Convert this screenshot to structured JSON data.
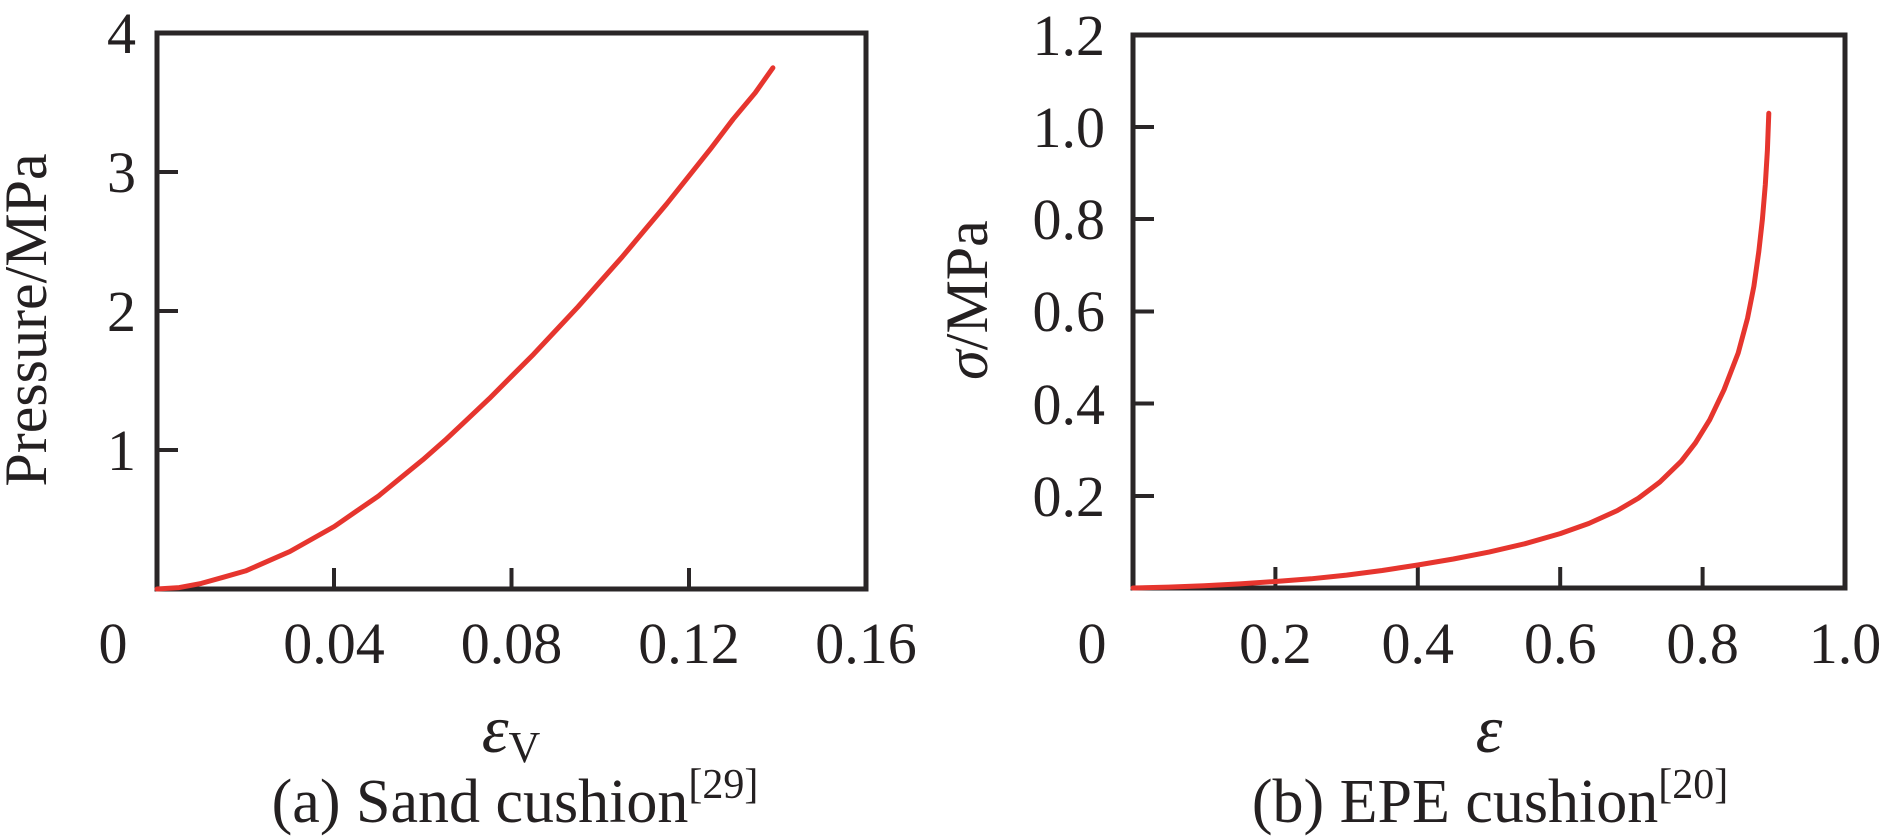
{
  "figure": {
    "background": "#ffffff",
    "text_color": "#242021",
    "axis_color": "#2a2627",
    "curve_color": "#e6352e"
  },
  "chart_data": [
    {
      "id": "a",
      "type": "line",
      "caption": "(a) Sand cushion",
      "caption_ref": "[29]",
      "xlabel": "ε",
      "xlabel_sub": "V",
      "ylabel": "Pressure/MPa",
      "xlim": [
        0,
        0.16
      ],
      "ylim": [
        0,
        4
      ],
      "grid": false,
      "legend": null,
      "x_tick_values": [
        0.04,
        0.08,
        0.12
      ],
      "x_tick_labels": [
        "0",
        "0.04",
        "0.08",
        "0.12",
        "0.16"
      ],
      "y_tick_values": [
        1,
        2,
        3
      ],
      "y_tick_labels": [
        "4",
        "3",
        "2",
        "1"
      ],
      "series": [
        {
          "name": "sand-cushion-stress-strain",
          "color": "#e6352e",
          "x": [
            0,
            0.005,
            0.01,
            0.015,
            0.02,
            0.025,
            0.03,
            0.035,
            0.04,
            0.045,
            0.05,
            0.055,
            0.06,
            0.065,
            0.07,
            0.075,
            0.08,
            0.085,
            0.09,
            0.095,
            0.1,
            0.105,
            0.11,
            0.115,
            0.12,
            0.125,
            0.13,
            0.135,
            0.139
          ],
          "y": [
            0,
            0.01,
            0.04,
            0.085,
            0.13,
            0.2,
            0.27,
            0.36,
            0.45,
            0.56,
            0.67,
            0.8,
            0.93,
            1.07,
            1.22,
            1.37,
            1.53,
            1.69,
            1.86,
            2.03,
            2.21,
            2.39,
            2.58,
            2.77,
            2.97,
            3.17,
            3.38,
            3.57,
            3.75
          ]
        }
      ]
    },
    {
      "id": "b",
      "type": "line",
      "caption": "(b) EPE cushion",
      "caption_ref": "[20]",
      "xlabel": "ε",
      "xlabel_sub": "",
      "ylabel_main": "σ",
      "ylabel_rest": "/MPa",
      "xlim": [
        0,
        1.0
      ],
      "ylim": [
        0,
        1.2
      ],
      "grid": false,
      "legend": null,
      "x_tick_values": [
        0.2,
        0.4,
        0.6,
        0.8
      ],
      "x_tick_labels": [
        "0",
        "0.2",
        "0.4",
        "0.6",
        "0.8",
        "1.0"
      ],
      "y_tick_values": [
        0.2,
        0.4,
        0.6,
        0.8,
        1.0
      ],
      "y_tick_labels": [
        "1.2",
        "1.0",
        "0.8",
        "0.6",
        "0.4",
        "0.2"
      ],
      "series": [
        {
          "name": "epe-cushion-stress-strain",
          "color": "#e6352e",
          "x": [
            0,
            0.05,
            0.1,
            0.15,
            0.2,
            0.25,
            0.3,
            0.35,
            0.4,
            0.45,
            0.5,
            0.55,
            0.6,
            0.64,
            0.68,
            0.71,
            0.74,
            0.77,
            0.79,
            0.81,
            0.83,
            0.85,
            0.863,
            0.872,
            0.879,
            0.884,
            0.888,
            0.891,
            0.893
          ],
          "y": [
            0,
            0.002,
            0.005,
            0.009,
            0.014,
            0.02,
            0.028,
            0.038,
            0.05,
            0.063,
            0.078,
            0.096,
            0.118,
            0.14,
            0.168,
            0.195,
            0.23,
            0.275,
            0.315,
            0.365,
            0.43,
            0.51,
            0.585,
            0.655,
            0.73,
            0.8,
            0.875,
            0.95,
            1.03
          ]
        }
      ]
    }
  ]
}
